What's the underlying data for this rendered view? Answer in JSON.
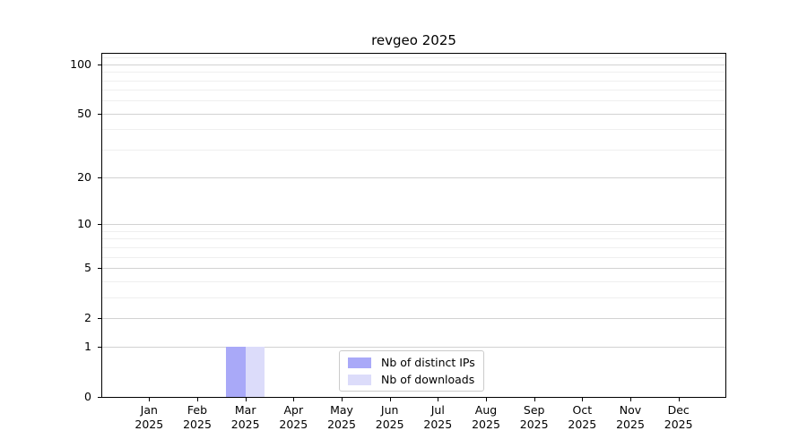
{
  "chart_data": {
    "type": "bar",
    "title": "revgeo 2025",
    "categories": [
      "Jan\n2025",
      "Feb\n2025",
      "Mar\n2025",
      "Apr\n2025",
      "May\n2025",
      "Jun\n2025",
      "Jul\n2025",
      "Aug\n2025",
      "Sep\n2025",
      "Oct\n2025",
      "Nov\n2025",
      "Dec\n2025"
    ],
    "series": [
      {
        "name": "Nb of distinct IPs",
        "color": "#a9a9f8",
        "values": [
          0,
          0,
          1,
          0,
          0,
          0,
          0,
          0,
          0,
          0,
          0,
          0
        ]
      },
      {
        "name": "Nb of downloads",
        "color": "#dcdcfa",
        "values": [
          0,
          0,
          1,
          0,
          0,
          0,
          0,
          0,
          0,
          0,
          0,
          0
        ]
      }
    ],
    "xlabel": "",
    "ylabel": "",
    "yscale": "log1p",
    "yticks": [
      0,
      1,
      2,
      5,
      10,
      20,
      50,
      100
    ],
    "yticks_minor": [
      3,
      4,
      6,
      7,
      8,
      9,
      30,
      40,
      60,
      70,
      80,
      90,
      110
    ],
    "ylim": [
      0,
      116
    ],
    "grid": true,
    "bar_width_fraction": 0.4,
    "legend": {
      "position": "lower center",
      "labels": [
        "Nb of distinct IPs",
        "Nb of downloads"
      ]
    },
    "colors": {
      "grid_major": "#d2d2d2",
      "grid_minor": "#efefef",
      "axis": "#000000",
      "background": "#ffffff",
      "text": "#000000"
    }
  }
}
